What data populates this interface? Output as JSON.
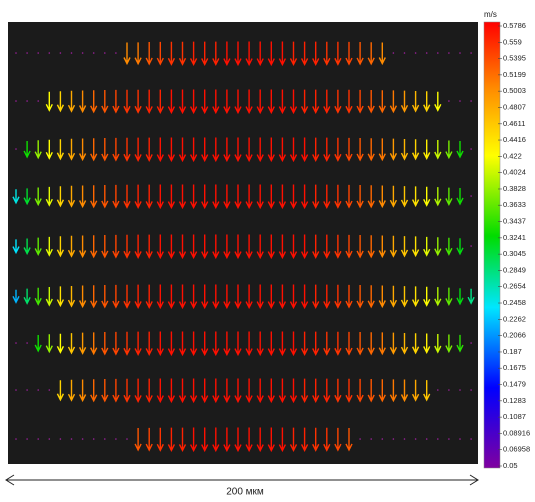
{
  "colorbar": {
    "unit": "m/s",
    "ticks": [
      0.5786,
      0.559,
      0.5395,
      0.5199,
      0.5003,
      0.4807,
      0.4611,
      0.4416,
      0.422,
      0.4024,
      0.3828,
      0.3633,
      0.3437,
      0.3241,
      0.3045,
      0.2849,
      0.2654,
      0.2458,
      0.2262,
      0.2066,
      0.187,
      0.1675,
      0.1479,
      0.1283,
      0.1087,
      0.08916,
      0.06958,
      0.05
    ]
  },
  "scale_bar": {
    "label": "200 мкм"
  },
  "vector_rows": [
    [
      null,
      null,
      null,
      null,
      null,
      null,
      null,
      null,
      null,
      null,
      0.5,
      0.51,
      0.53,
      0.54,
      0.55,
      0.55,
      0.56,
      0.56,
      0.56,
      0.57,
      0.57,
      0.57,
      0.57,
      0.57,
      0.57,
      0.56,
      0.56,
      0.56,
      0.55,
      0.55,
      0.54,
      0.53,
      0.52,
      0.5,
      null,
      null,
      null,
      null,
      null,
      null,
      null,
      null
    ],
    [
      null,
      null,
      null,
      0.42,
      0.45,
      0.48,
      0.5,
      0.52,
      0.53,
      0.54,
      0.55,
      0.55,
      0.56,
      0.56,
      0.57,
      0.57,
      0.57,
      0.57,
      0.57,
      0.57,
      0.57,
      0.57,
      0.57,
      0.57,
      0.57,
      0.57,
      0.56,
      0.56,
      0.56,
      0.55,
      0.55,
      0.54,
      0.53,
      0.52,
      0.51,
      0.49,
      0.47,
      0.45,
      0.42,
      null,
      null,
      null
    ],
    [
      null,
      0.33,
      0.38,
      0.42,
      0.45,
      0.48,
      0.5,
      0.52,
      0.53,
      0.54,
      0.55,
      0.56,
      0.56,
      0.57,
      0.57,
      0.57,
      0.57,
      0.57,
      0.57,
      0.57,
      0.57,
      0.57,
      0.57,
      0.57,
      0.57,
      0.57,
      0.57,
      0.56,
      0.56,
      0.55,
      0.54,
      0.53,
      0.52,
      0.51,
      0.49,
      0.47,
      0.45,
      0.43,
      0.4,
      0.37,
      0.33,
      null
    ],
    [
      0.25,
      0.31,
      0.37,
      0.41,
      0.45,
      0.48,
      0.5,
      0.52,
      0.53,
      0.54,
      0.55,
      0.56,
      0.56,
      0.57,
      0.57,
      0.57,
      0.57,
      0.57,
      0.57,
      0.57,
      0.57,
      0.57,
      0.57,
      0.57,
      0.57,
      0.57,
      0.57,
      0.56,
      0.56,
      0.55,
      0.54,
      0.53,
      0.52,
      0.5,
      0.48,
      0.46,
      0.44,
      0.42,
      0.39,
      0.36,
      0.33,
      null
    ],
    [
      0.24,
      0.3,
      0.36,
      0.41,
      0.45,
      0.48,
      0.5,
      0.52,
      0.53,
      0.54,
      0.55,
      0.56,
      0.56,
      0.57,
      0.57,
      0.57,
      0.57,
      0.57,
      0.57,
      0.57,
      0.57,
      0.57,
      0.57,
      0.57,
      0.57,
      0.57,
      0.57,
      0.56,
      0.56,
      0.55,
      0.54,
      0.53,
      0.52,
      0.5,
      0.48,
      0.46,
      0.44,
      0.41,
      0.38,
      0.35,
      0.32,
      null
    ],
    [
      0.22,
      0.29,
      0.35,
      0.4,
      0.44,
      0.47,
      0.5,
      0.52,
      0.53,
      0.54,
      0.55,
      0.56,
      0.56,
      0.57,
      0.57,
      0.57,
      0.57,
      0.57,
      0.57,
      0.57,
      0.57,
      0.57,
      0.57,
      0.57,
      0.57,
      0.57,
      0.57,
      0.56,
      0.56,
      0.55,
      0.54,
      0.53,
      0.52,
      0.5,
      0.48,
      0.46,
      0.44,
      0.42,
      0.39,
      0.36,
      0.32,
      0.28
    ],
    [
      null,
      null,
      0.33,
      0.38,
      0.42,
      0.46,
      0.49,
      0.51,
      0.53,
      0.54,
      0.55,
      0.56,
      0.56,
      0.57,
      0.57,
      0.57,
      0.57,
      0.57,
      0.57,
      0.57,
      0.57,
      0.57,
      0.57,
      0.57,
      0.57,
      0.57,
      0.56,
      0.56,
      0.55,
      0.55,
      0.54,
      0.53,
      0.52,
      0.51,
      0.49,
      0.47,
      0.45,
      0.43,
      0.4,
      0.37,
      0.34,
      null
    ],
    [
      null,
      null,
      null,
      null,
      0.45,
      0.48,
      0.5,
      0.52,
      0.53,
      0.54,
      0.55,
      0.56,
      0.56,
      0.57,
      0.57,
      0.57,
      0.57,
      0.57,
      0.57,
      0.57,
      0.57,
      0.57,
      0.57,
      0.57,
      0.57,
      0.57,
      0.56,
      0.56,
      0.56,
      0.55,
      0.55,
      0.54,
      0.53,
      0.52,
      0.51,
      0.5,
      0.48,
      0.46,
      null,
      null,
      null,
      null
    ],
    [
      null,
      null,
      null,
      null,
      null,
      null,
      null,
      null,
      null,
      null,
      null,
      0.53,
      0.54,
      0.55,
      0.56,
      0.56,
      0.57,
      0.57,
      0.57,
      0.57,
      0.57,
      0.57,
      0.57,
      0.57,
      0.57,
      0.56,
      0.56,
      0.55,
      0.55,
      0.54,
      0.53,
      null,
      null,
      null,
      null,
      null,
      null,
      null,
      null,
      null,
      null,
      null
    ]
  ]
}
